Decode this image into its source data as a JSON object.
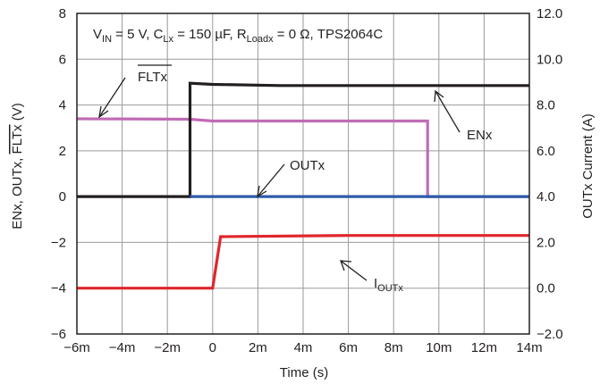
{
  "chart_data": {
    "type": "line",
    "title": "VIN = 5 V, CLx = 150 µF, RLoadx = 0 Ω, TPS2064C",
    "title_parts": {
      "vin": "V",
      "vin_sub": "IN",
      "vin_val": " = 5 V, C",
      "cl_sub": "Lx",
      "cl_val": " = 150 µF, R",
      "rl_sub": "Loadx",
      "rl_val": " = 0 Ω, TPS2064C"
    },
    "xlabel": "Time (s)",
    "ylabel": "ENx, OUTx, FLTx (V)",
    "ylabel_parts": {
      "plain": "ENx, OUTx, ",
      "overlined": "FLTx",
      "unit": " (V)"
    },
    "y2label": "OUTx Current (A)",
    "x_unit": "ms",
    "xlim": [
      -6,
      14
    ],
    "ylim": [
      -6,
      8
    ],
    "y2lim": [
      -2,
      12
    ],
    "x_ticks": [
      -6,
      -4,
      -2,
      0,
      2,
      4,
      6,
      8,
      10,
      12,
      14
    ],
    "x_tick_labels": [
      "−6m",
      "−4m",
      "−2m",
      "0",
      "2m",
      "4m",
      "6m",
      "8m",
      "10m",
      "12m",
      "14m"
    ],
    "y_ticks": [
      -6,
      -4,
      -2,
      0,
      2,
      4,
      6,
      8
    ],
    "y_tick_labels": [
      "−6",
      "−4",
      "−2",
      "0",
      "2",
      "4",
      "6",
      "8"
    ],
    "y2_ticks": [
      -2,
      0,
      2,
      4,
      6,
      8,
      10,
      12
    ],
    "y2_tick_labels": [
      "−2.0",
      "0.0",
      "2.0",
      "4.0",
      "6.0",
      "8.0",
      "10.0",
      "12.0"
    ],
    "grid": true,
    "series": [
      {
        "name": "FLTx",
        "color": "#c06bb5",
        "axis": "left",
        "points": [
          [
            -6,
            3.4
          ],
          [
            -1.0,
            3.38
          ],
          [
            0,
            3.3
          ],
          [
            9.5,
            3.3
          ],
          [
            9.5,
            0.0
          ],
          [
            14,
            0.0
          ]
        ]
      },
      {
        "name": "ENx",
        "color": "#231f20",
        "axis": "left",
        "points": [
          [
            -6,
            0.0
          ],
          [
            -1.0,
            0.0
          ],
          [
            -1.0,
            4.95
          ],
          [
            0,
            4.9
          ],
          [
            3,
            4.85
          ],
          [
            14,
            4.85
          ]
        ]
      },
      {
        "name": "OUTx",
        "color": "#2e5aa8",
        "axis": "left",
        "points": [
          [
            -1.0,
            0.0
          ],
          [
            14,
            0.0
          ]
        ]
      },
      {
        "name": "IOUTx",
        "color": "#e0262b",
        "axis": "right",
        "points": [
          [
            -6,
            0.0
          ],
          [
            0,
            0.0
          ],
          [
            0.35,
            2.25
          ],
          [
            6,
            2.3
          ],
          [
            14,
            2.3
          ]
        ]
      }
    ],
    "annotations": {
      "fltx": "FLTx",
      "enx": "ENx",
      "outx": "OUTx",
      "ioutx_main": "I",
      "ioutx_sub": "OUTx"
    }
  }
}
